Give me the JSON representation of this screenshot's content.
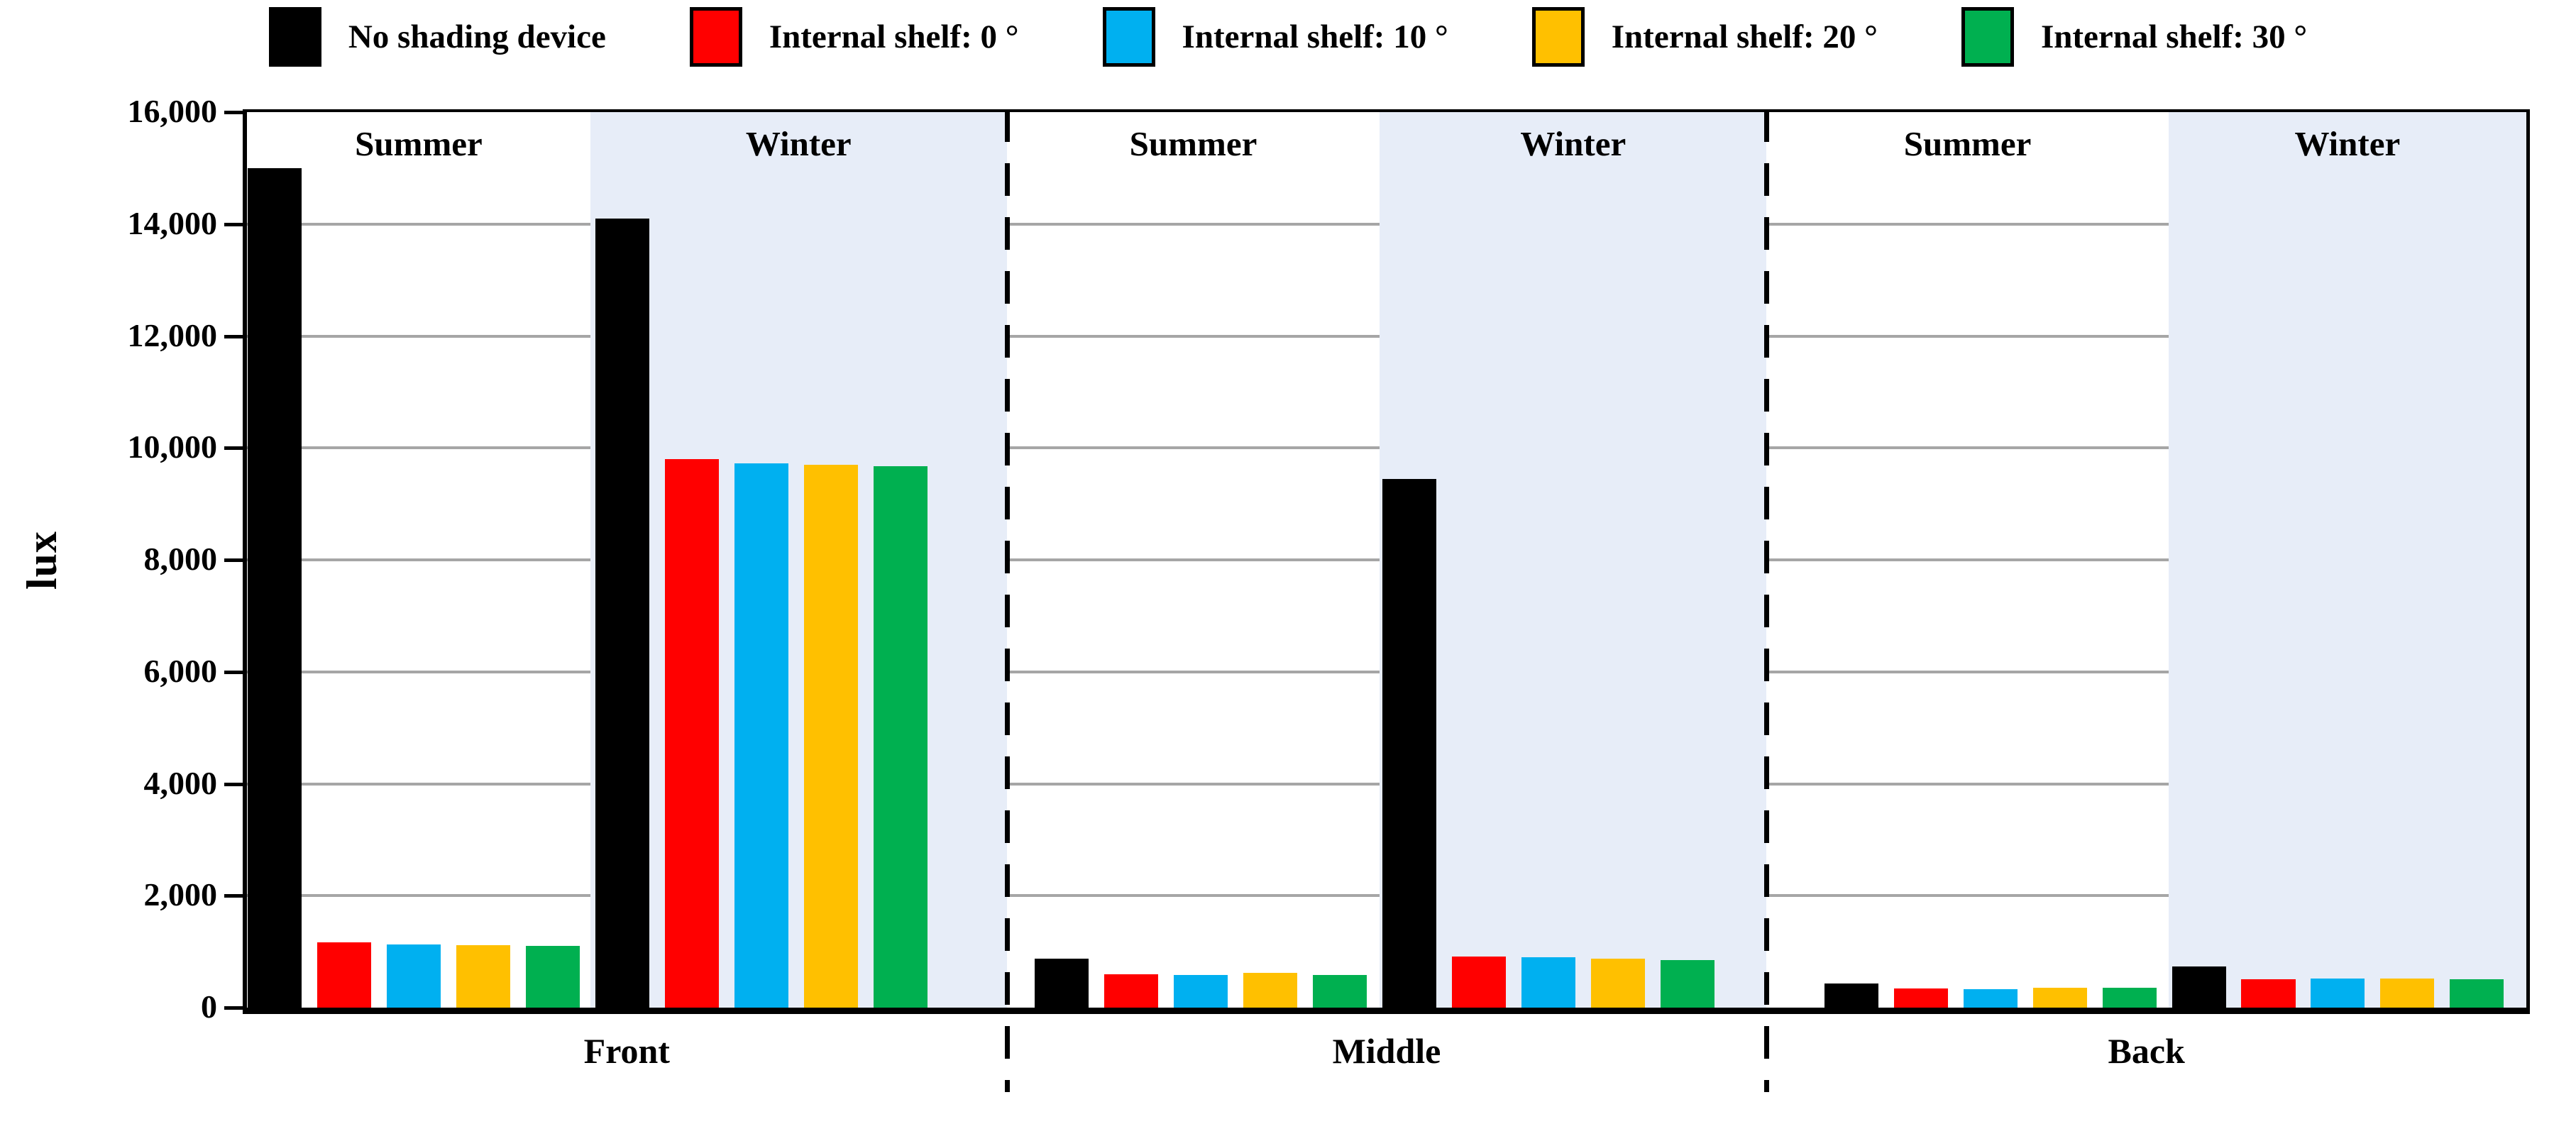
{
  "legend": {
    "items": [
      {
        "label": "No shading device",
        "color": "#000000"
      },
      {
        "label": "Internal shelf: 0 °",
        "color": "#FF0000"
      },
      {
        "label": "Internal shelf: 10 °",
        "color": "#00B0F0"
      },
      {
        "label": "Internal shelf: 20 °",
        "color": "#FFC000"
      },
      {
        "label": "Internal shelf: 30 °",
        "color": "#00B050"
      }
    ]
  },
  "y_axis": {
    "title": "lux",
    "tick_labels": [
      "0",
      "2,000",
      "4,000",
      "6,000",
      "8,000",
      "10,000",
      "12,000",
      "14,000",
      "16,000"
    ],
    "tick_values": [
      0,
      2000,
      4000,
      6000,
      8000,
      10000,
      12000,
      14000,
      16000
    ]
  },
  "colors": {
    "no_shading": "#000000",
    "shelf_0": "#FF0000",
    "shelf_10": "#00B0F0",
    "shelf_20": "#FFC000",
    "shelf_30": "#00B050",
    "winter_band": "#E7EDF8",
    "gridline": "#A6A6A6",
    "axis": "#000000"
  },
  "chart_data": {
    "type": "bar",
    "title": "",
    "xlabel": "",
    "ylabel": "lux",
    "ylim": [
      0,
      16000
    ],
    "ytick_step": 2000,
    "grid": true,
    "legend_position": "top",
    "section_labels": [
      "Front",
      "Middle",
      "Back"
    ],
    "season_labels": [
      "Summer",
      "Winter"
    ],
    "categories": [
      "Front Summer",
      "Front Winter",
      "Middle Summer",
      "Middle Winter",
      "Back Summer",
      "Back Winter"
    ],
    "winter_band_color": "#E7EDF8",
    "series": [
      {
        "name": "No shading device",
        "color": "#000000",
        "values": [
          15000,
          14100,
          880,
          9450,
          430,
          730
        ]
      },
      {
        "name": "Internal shelf: 0 °",
        "color": "#FF0000",
        "values": [
          1170,
          9800,
          590,
          910,
          340,
          510
        ]
      },
      {
        "name": "Internal shelf: 10 °",
        "color": "#00B0F0",
        "values": [
          1130,
          9720,
          580,
          900,
          330,
          520
        ]
      },
      {
        "name": "Internal shelf: 20 °",
        "color": "#FFC000",
        "values": [
          1110,
          9700,
          620,
          880,
          360,
          520
        ]
      },
      {
        "name": "Internal shelf: 30 °",
        "color": "#00B050",
        "values": [
          1100,
          9670,
          580,
          850,
          350,
          510
        ]
      }
    ]
  }
}
